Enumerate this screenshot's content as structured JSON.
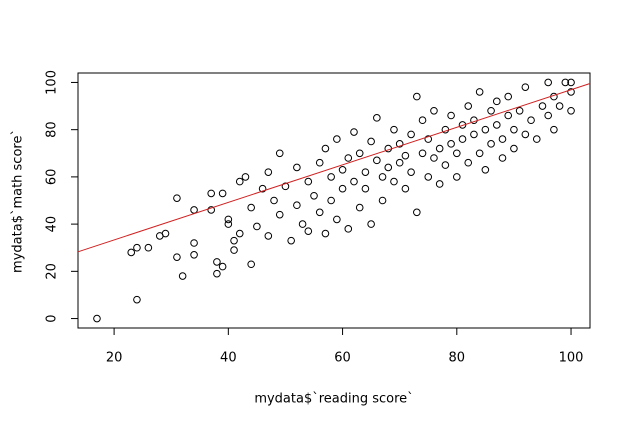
{
  "chart_data": {
    "type": "scatter",
    "x_label": "mydata$`reading score`",
    "y_label": "mydata$`math score`",
    "x": [
      17,
      23,
      24,
      24,
      26,
      28,
      29,
      31,
      31,
      32,
      34,
      34,
      34,
      37,
      37,
      38,
      38,
      39,
      39,
      40,
      40,
      41,
      41,
      42,
      42,
      43,
      44,
      44,
      45,
      46,
      47,
      47,
      48,
      49,
      49,
      50,
      51,
      52,
      52,
      53,
      54,
      54,
      55,
      56,
      56,
      57,
      57,
      58,
      58,
      59,
      59,
      60,
      60,
      61,
      61,
      62,
      62,
      63,
      63,
      64,
      64,
      65,
      65,
      66,
      66,
      67,
      67,
      68,
      68,
      69,
      69,
      70,
      70,
      71,
      71,
      72,
      72,
      73,
      73,
      74,
      74,
      75,
      75,
      76,
      76,
      77,
      77,
      78,
      78,
      79,
      79,
      80,
      80,
      81,
      81,
      82,
      82,
      83,
      83,
      84,
      84,
      85,
      85,
      86,
      86,
      87,
      87,
      88,
      88,
      89,
      89,
      90,
      90,
      91,
      92,
      92,
      93,
      94,
      95,
      96,
      96,
      97,
      97,
      98,
      99,
      100,
      100,
      100
    ],
    "y": [
      0,
      28,
      8,
      30,
      30,
      35,
      36,
      51,
      26,
      18,
      46,
      32,
      27,
      46,
      53,
      19,
      24,
      22,
      53,
      40,
      42,
      33,
      29,
      58,
      36,
      60,
      47,
      23,
      39,
      55,
      35,
      62,
      50,
      70,
      44,
      56,
      33,
      48,
      64,
      40,
      58,
      37,
      52,
      66,
      45,
      72,
      36,
      60,
      50,
      76,
      42,
      63,
      55,
      68,
      38,
      58,
      79,
      47,
      70,
      62,
      55,
      75,
      40,
      67,
      85,
      60,
      50,
      72,
      64,
      58,
      80,
      66,
      74,
      55,
      69,
      78,
      62,
      94,
      45,
      70,
      84,
      60,
      76,
      68,
      88,
      72,
      57,
      80,
      65,
      74,
      86,
      70,
      60,
      82,
      76,
      90,
      66,
      78,
      84,
      96,
      70,
      80,
      63,
      88,
      74,
      82,
      92,
      76,
      68,
      86,
      94,
      80,
      72,
      88,
      78,
      98,
      84,
      76,
      90,
      86,
      100,
      80,
      94,
      90,
      100,
      96,
      88,
      100
    ],
    "color": "#000000",
    "fit_line": {
      "intercept": 17.4,
      "slope": 0.795,
      "color": "#d02020"
    },
    "xlim": [
      13.68,
      103.32
    ],
    "ylim": [
      -4,
      104
    ],
    "xticks": [
      20,
      40,
      60,
      80,
      100
    ],
    "yticks": [
      0,
      20,
      40,
      60,
      80,
      100
    ]
  }
}
